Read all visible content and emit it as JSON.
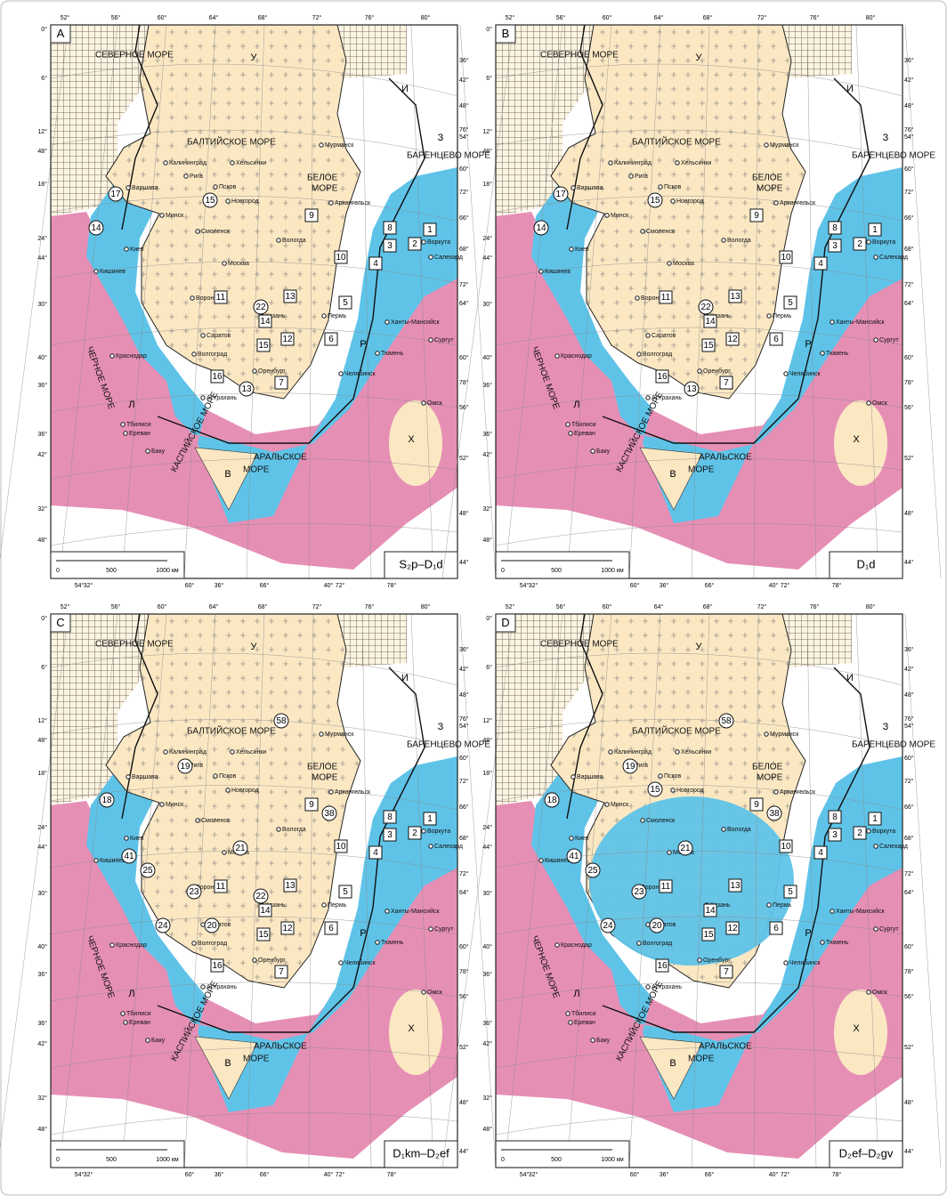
{
  "panels": [
    {
      "letter": "A",
      "stage": "S₂p–D₁d",
      "sites": [
        {
          "label": "17",
          "shape": "circle"
        },
        {
          "label": "14",
          "shape": "circle"
        },
        {
          "label": "15",
          "shape": "circle"
        },
        {
          "label": "9",
          "shape": "square"
        },
        {
          "label": "8",
          "shape": "square"
        },
        {
          "label": "1",
          "shape": "square"
        },
        {
          "label": "3",
          "shape": "square"
        },
        {
          "label": "2",
          "shape": "square"
        },
        {
          "label": "10",
          "shape": "square"
        },
        {
          "label": "4",
          "shape": "square"
        },
        {
          "label": "11",
          "shape": "square"
        },
        {
          "label": "22",
          "shape": "circle"
        },
        {
          "label": "13",
          "shape": "square"
        },
        {
          "label": "14",
          "shape": "square"
        },
        {
          "label": "12",
          "shape": "square"
        },
        {
          "label": "15",
          "shape": "square"
        },
        {
          "label": "5",
          "shape": "square"
        },
        {
          "label": "6",
          "shape": "square"
        },
        {
          "label": "16",
          "shape": "square"
        },
        {
          "label": "13",
          "shape": "circle"
        },
        {
          "label": "7",
          "shape": "square"
        }
      ]
    },
    {
      "letter": "B",
      "stage": "D₁d",
      "sites": [
        {
          "label": "17",
          "shape": "circle"
        },
        {
          "label": "14",
          "shape": "circle"
        },
        {
          "label": "15",
          "shape": "circle"
        },
        {
          "label": "9",
          "shape": "square"
        },
        {
          "label": "8",
          "shape": "square"
        },
        {
          "label": "1",
          "shape": "square"
        },
        {
          "label": "3",
          "shape": "square"
        },
        {
          "label": "2",
          "shape": "square"
        },
        {
          "label": "10",
          "shape": "square"
        },
        {
          "label": "4",
          "shape": "square"
        },
        {
          "label": "11",
          "shape": "square"
        },
        {
          "label": "22",
          "shape": "circle"
        },
        {
          "label": "13",
          "shape": "square"
        },
        {
          "label": "14",
          "shape": "square"
        },
        {
          "label": "12",
          "shape": "square"
        },
        {
          "label": "15",
          "shape": "square"
        },
        {
          "label": "5",
          "shape": "square"
        },
        {
          "label": "6",
          "shape": "square"
        },
        {
          "label": "16",
          "shape": "square"
        },
        {
          "label": "13",
          "shape": "circle"
        },
        {
          "label": "7",
          "shape": "square"
        }
      ]
    },
    {
      "letter": "C",
      "stage": "D₁km–D₂ef",
      "sites": [
        {
          "label": "58",
          "shape": "circle"
        },
        {
          "label": "19",
          "shape": "circle"
        },
        {
          "label": "18",
          "shape": "circle"
        },
        {
          "label": "38",
          "shape": "circle"
        },
        {
          "label": "41",
          "shape": "circle"
        },
        {
          "label": "25",
          "shape": "circle"
        },
        {
          "label": "23",
          "shape": "circle"
        },
        {
          "label": "21",
          "shape": "circle"
        },
        {
          "label": "20",
          "shape": "circle"
        },
        {
          "label": "24",
          "shape": "circle"
        },
        {
          "label": "9",
          "shape": "square"
        },
        {
          "label": "8",
          "shape": "square"
        },
        {
          "label": "1",
          "shape": "square"
        },
        {
          "label": "3",
          "shape": "square"
        },
        {
          "label": "2",
          "shape": "square"
        },
        {
          "label": "10",
          "shape": "square"
        },
        {
          "label": "4",
          "shape": "square"
        },
        {
          "label": "11",
          "shape": "square"
        },
        {
          "label": "13",
          "shape": "square"
        },
        {
          "label": "22",
          "shape": "circle"
        },
        {
          "label": "14",
          "shape": "square"
        },
        {
          "label": "15",
          "shape": "square"
        },
        {
          "label": "12",
          "shape": "square"
        },
        {
          "label": "5",
          "shape": "square"
        },
        {
          "label": "6",
          "shape": "square"
        },
        {
          "label": "16",
          "shape": "square"
        },
        {
          "label": "7",
          "shape": "square"
        }
      ]
    },
    {
      "letter": "D",
      "stage": "D₂ef–D₂gv",
      "sites": [
        {
          "label": "58",
          "shape": "circle"
        },
        {
          "label": "18",
          "shape": "circle"
        },
        {
          "label": "19",
          "shape": "circle"
        },
        {
          "label": "15",
          "shape": "circle"
        },
        {
          "label": "38",
          "shape": "circle"
        },
        {
          "label": "9",
          "shape": "square"
        },
        {
          "label": "8",
          "shape": "square"
        },
        {
          "label": "1",
          "shape": "square"
        },
        {
          "label": "3",
          "shape": "square"
        },
        {
          "label": "2",
          "shape": "square"
        },
        {
          "label": "4",
          "shape": "square"
        },
        {
          "label": "10",
          "shape": "square"
        },
        {
          "label": "41",
          "shape": "circle"
        },
        {
          "label": "25",
          "shape": "circle"
        },
        {
          "label": "23",
          "shape": "circle"
        },
        {
          "label": "21",
          "shape": "circle"
        },
        {
          "label": "11",
          "shape": "square"
        },
        {
          "label": "20",
          "shape": "circle"
        },
        {
          "label": "24",
          "shape": "circle"
        },
        {
          "label": "13",
          "shape": "square"
        },
        {
          "label": "14",
          "shape": "square"
        },
        {
          "label": "12",
          "shape": "square"
        },
        {
          "label": "15",
          "shape": "square"
        },
        {
          "label": "6",
          "shape": "square"
        },
        {
          "label": "5",
          "shape": "square"
        },
        {
          "label": "16",
          "shape": "square"
        },
        {
          "label": "7",
          "shape": "square"
        }
      ]
    }
  ],
  "seas": [
    "СЕВЕРНОЕ МОРЕ",
    "БАЛТИЙСКОЕ МОРЕ",
    "БАРЕНЦЕВО МОРЕ",
    "БЕЛОЕ",
    "МОРЕ",
    "ЧЕРНОЕ МОРЕ",
    "КАСПИЙСКОЕ МОРЕ",
    "АРАЛЬСКОЕ",
    "МОРЕ"
  ],
  "regions": [
    "У",
    "И",
    "З",
    "Л",
    "Р",
    "Х",
    "В"
  ],
  "cities": [
    "Мурманск",
    "Хельсинки",
    "Рига",
    "Псков",
    "Новгород",
    "Архангельск",
    "Минск",
    "Смоленск",
    "Вологда",
    "Киев",
    "Москва",
    "Воронеж",
    "Кишинев",
    "Казань",
    "Пермь",
    "Саратов",
    "Волгоград",
    "Краснодар",
    "Оренбург",
    "Астрахань",
    "Челябинск",
    "Тюмень",
    "Ханты-Мансийск",
    "Сургут",
    "Омск",
    "Тбилиси",
    "Ереван",
    "Баку",
    "Варшава",
    "Калининград",
    "Воркута",
    "Салехард"
  ],
  "frame": {
    "top": [
      "52°",
      "56°",
      "60°",
      "64°",
      "68°",
      "72°",
      "76°",
      "80°"
    ],
    "left": [
      "0°",
      "6°",
      "12°",
      "48°",
      "18°",
      "24°",
      "44°",
      "30°",
      "40°",
      "36°",
      "36°",
      "42°",
      "32°",
      "48°"
    ],
    "right": [
      "36°",
      "42°",
      "48°",
      "76°",
      "54°",
      "60°",
      "72°",
      "66°",
      "68°",
      "72°",
      "64°",
      "60°",
      "78°",
      "56°",
      "52°",
      "48°",
      "44°"
    ],
    "bottom": [
      "54°",
      "32°",
      "60°",
      "36°",
      "66°",
      "40°",
      "72°",
      "78°"
    ]
  },
  "scale": [
    "0",
    "500",
    "1000 км"
  ]
}
